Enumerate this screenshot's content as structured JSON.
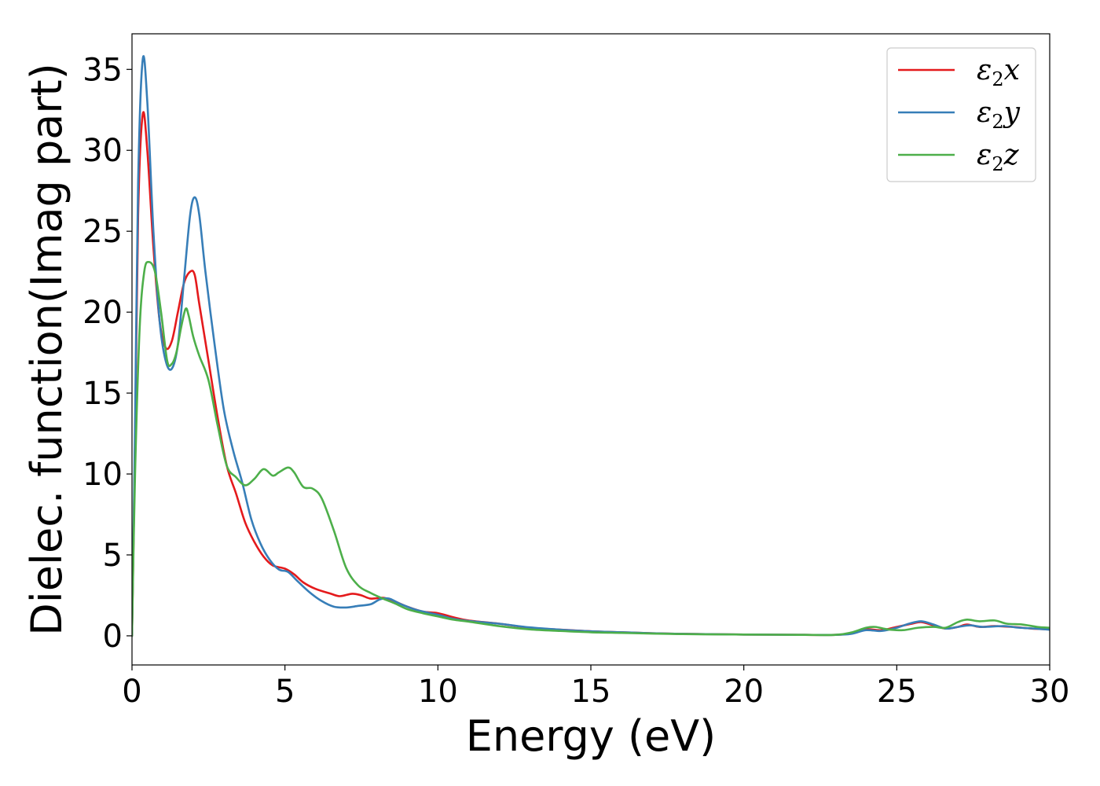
{
  "chart_data": {
    "type": "line",
    "xlabel": "Energy (eV)",
    "ylabel": "Dielec. function(Imag part)",
    "xlim": [
      0,
      30
    ],
    "ylim": [
      -1.8,
      37.2
    ],
    "xticks": [
      0,
      5,
      10,
      15,
      20,
      25,
      30
    ],
    "xtick_labels": [
      "0",
      "5",
      "10",
      "15",
      "20",
      "25",
      "30"
    ],
    "yticks": [
      0,
      5,
      10,
      15,
      20,
      25,
      30,
      35
    ],
    "ytick_labels": [
      "0",
      "5",
      "10",
      "15",
      "20",
      "25",
      "30",
      "35"
    ],
    "grid": false,
    "legend_position": "top-right",
    "series": [
      {
        "name": "ε2x",
        "symbol": "ε",
        "sub": "2",
        "suffix": "x",
        "color": "#e41a1c",
        "points": [
          [
            0,
            0
          ],
          [
            0.1,
            12
          ],
          [
            0.2,
            26
          ],
          [
            0.35,
            32.2
          ],
          [
            0.5,
            30
          ],
          [
            0.7,
            24
          ],
          [
            0.9,
            19.5
          ],
          [
            1.1,
            17.8
          ],
          [
            1.3,
            18.2
          ],
          [
            1.5,
            20
          ],
          [
            1.7,
            21.8
          ],
          [
            1.9,
            22.5
          ],
          [
            2.05,
            22.3
          ],
          [
            2.2,
            20.5
          ],
          [
            2.5,
            17
          ],
          [
            2.8,
            13.5
          ],
          [
            3.1,
            10.5
          ],
          [
            3.4,
            8.8
          ],
          [
            3.7,
            7
          ],
          [
            4.0,
            5.8
          ],
          [
            4.3,
            4.9
          ],
          [
            4.6,
            4.35
          ],
          [
            5.0,
            4.15
          ],
          [
            5.3,
            3.8
          ],
          [
            5.6,
            3.3
          ],
          [
            6.0,
            2.9
          ],
          [
            6.5,
            2.6
          ],
          [
            6.8,
            2.45
          ],
          [
            7.2,
            2.6
          ],
          [
            7.5,
            2.5
          ],
          [
            7.8,
            2.3
          ],
          [
            8.2,
            2.35
          ],
          [
            8.5,
            2.2
          ],
          [
            9.0,
            1.8
          ],
          [
            9.5,
            1.5
          ],
          [
            10,
            1.4
          ],
          [
            10.5,
            1.15
          ],
          [
            11,
            0.95
          ],
          [
            12,
            0.75
          ],
          [
            13,
            0.5
          ],
          [
            14,
            0.38
          ],
          [
            15,
            0.28
          ],
          [
            16,
            0.22
          ],
          [
            17,
            0.16
          ],
          [
            18,
            0.12
          ],
          [
            19,
            0.1
          ],
          [
            20,
            0.08
          ],
          [
            21,
            0.07
          ],
          [
            22,
            0.06
          ],
          [
            23,
            0.06
          ],
          [
            23.5,
            0.15
          ],
          [
            24,
            0.4
          ],
          [
            24.5,
            0.35
          ],
          [
            25,
            0.55
          ],
          [
            25.5,
            0.75
          ],
          [
            25.8,
            0.85
          ],
          [
            26.2,
            0.65
          ],
          [
            26.6,
            0.45
          ],
          [
            27,
            0.55
          ],
          [
            27.3,
            0.7
          ],
          [
            27.7,
            0.55
          ],
          [
            28.2,
            0.6
          ],
          [
            28.8,
            0.55
          ],
          [
            29.4,
            0.45
          ],
          [
            30,
            0.4
          ]
        ]
      },
      {
        "name": "ε2y",
        "symbol": "ε",
        "sub": "2",
        "suffix": "y",
        "color": "#377eb8",
        "points": [
          [
            0,
            0
          ],
          [
            0.1,
            13
          ],
          [
            0.2,
            28
          ],
          [
            0.35,
            35.6
          ],
          [
            0.5,
            33
          ],
          [
            0.7,
            25
          ],
          [
            0.9,
            19.5
          ],
          [
            1.1,
            17
          ],
          [
            1.3,
            16.5
          ],
          [
            1.5,
            18
          ],
          [
            1.7,
            22
          ],
          [
            1.9,
            26
          ],
          [
            2.05,
            27.1
          ],
          [
            2.2,
            26
          ],
          [
            2.4,
            22.5
          ],
          [
            2.7,
            18
          ],
          [
            3.0,
            14
          ],
          [
            3.3,
            11.5
          ],
          [
            3.6,
            9.5
          ],
          [
            3.9,
            7.2
          ],
          [
            4.2,
            5.7
          ],
          [
            4.5,
            4.7
          ],
          [
            4.8,
            4.1
          ],
          [
            5.1,
            3.95
          ],
          [
            5.4,
            3.4
          ],
          [
            5.8,
            2.7
          ],
          [
            6.2,
            2.15
          ],
          [
            6.6,
            1.8
          ],
          [
            7.0,
            1.75
          ],
          [
            7.4,
            1.85
          ],
          [
            7.8,
            1.95
          ],
          [
            8.1,
            2.25
          ],
          [
            8.4,
            2.3
          ],
          [
            8.8,
            1.95
          ],
          [
            9.3,
            1.6
          ],
          [
            10,
            1.3
          ],
          [
            10.5,
            1.05
          ],
          [
            11,
            0.92
          ],
          [
            12,
            0.75
          ],
          [
            13,
            0.52
          ],
          [
            14,
            0.38
          ],
          [
            15,
            0.28
          ],
          [
            16,
            0.22
          ],
          [
            17,
            0.16
          ],
          [
            18,
            0.12
          ],
          [
            19,
            0.1
          ],
          [
            20,
            0.08
          ],
          [
            21,
            0.07
          ],
          [
            22,
            0.06
          ],
          [
            23,
            0.06
          ],
          [
            23.5,
            0.12
          ],
          [
            24,
            0.35
          ],
          [
            24.5,
            0.3
          ],
          [
            25,
            0.5
          ],
          [
            25.4,
            0.75
          ],
          [
            25.8,
            0.9
          ],
          [
            26.2,
            0.7
          ],
          [
            26.6,
            0.45
          ],
          [
            27,
            0.55
          ],
          [
            27.4,
            0.65
          ],
          [
            27.8,
            0.55
          ],
          [
            28.5,
            0.6
          ],
          [
            29,
            0.5
          ],
          [
            29.5,
            0.45
          ],
          [
            30,
            0.38
          ]
        ]
      },
      {
        "name": "ε2z",
        "symbol": "ε",
        "sub": "2",
        "suffix": "z",
        "color": "#4daf4a",
        "points": [
          [
            0,
            0
          ],
          [
            0.1,
            10
          ],
          [
            0.25,
            19
          ],
          [
            0.4,
            22.5
          ],
          [
            0.55,
            23.1
          ],
          [
            0.75,
            22.5
          ],
          [
            0.95,
            20
          ],
          [
            1.15,
            17
          ],
          [
            1.3,
            16.8
          ],
          [
            1.45,
            17.5
          ],
          [
            1.6,
            19
          ],
          [
            1.75,
            20.2
          ],
          [
            1.85,
            19.8
          ],
          [
            2.0,
            18.5
          ],
          [
            2.2,
            17.3
          ],
          [
            2.5,
            15.8
          ],
          [
            2.8,
            13
          ],
          [
            3.1,
            10.5
          ],
          [
            3.4,
            9.8
          ],
          [
            3.7,
            9.3
          ],
          [
            4.0,
            9.7
          ],
          [
            4.3,
            10.3
          ],
          [
            4.6,
            9.9
          ],
          [
            4.8,
            10.1
          ],
          [
            5.1,
            10.4
          ],
          [
            5.3,
            10.1
          ],
          [
            5.6,
            9.2
          ],
          [
            5.9,
            9.1
          ],
          [
            6.2,
            8.5
          ],
          [
            6.6,
            6.5
          ],
          [
            7.0,
            4.2
          ],
          [
            7.4,
            3.1
          ],
          [
            7.8,
            2.65
          ],
          [
            8.2,
            2.3
          ],
          [
            8.6,
            2.0
          ],
          [
            9.0,
            1.65
          ],
          [
            9.5,
            1.4
          ],
          [
            10,
            1.2
          ],
          [
            10.5,
            1.0
          ],
          [
            11,
            0.88
          ],
          [
            12,
            0.6
          ],
          [
            13,
            0.4
          ],
          [
            14,
            0.3
          ],
          [
            15,
            0.22
          ],
          [
            16,
            0.18
          ],
          [
            17,
            0.14
          ],
          [
            18,
            0.11
          ],
          [
            19,
            0.09
          ],
          [
            20,
            0.08
          ],
          [
            21,
            0.07
          ],
          [
            22,
            0.06
          ],
          [
            23,
            0.06
          ],
          [
            23.5,
            0.2
          ],
          [
            24,
            0.5
          ],
          [
            24.3,
            0.55
          ],
          [
            24.7,
            0.4
          ],
          [
            25.2,
            0.35
          ],
          [
            25.7,
            0.5
          ],
          [
            26.2,
            0.55
          ],
          [
            26.6,
            0.5
          ],
          [
            27.0,
            0.85
          ],
          [
            27.3,
            1.0
          ],
          [
            27.7,
            0.9
          ],
          [
            28.2,
            0.95
          ],
          [
            28.6,
            0.75
          ],
          [
            29.1,
            0.7
          ],
          [
            29.6,
            0.55
          ],
          [
            30,
            0.5
          ]
        ]
      }
    ]
  }
}
